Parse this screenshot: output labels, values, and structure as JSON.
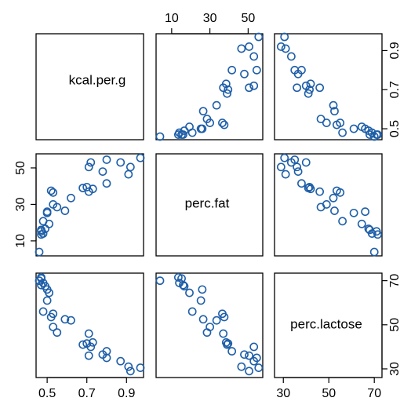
{
  "chart_data": {
    "type": "scatter",
    "variables": [
      "kcal.per.g",
      "perc.fat",
      "perc.lactose"
    ],
    "axes": {
      "kcal.per.g": {
        "range": [
          0.46,
          0.97
        ],
        "ticks": [
          0.5,
          0.7,
          0.9
        ],
        "tick_labels": [
          "0.5",
          "0.7",
          "0.9"
        ]
      },
      "perc.fat": {
        "range": [
          3.5,
          56
        ],
        "ticks": [
          10,
          30,
          50
        ],
        "tick_labels": [
          "10",
          "30",
          "50"
        ]
      },
      "perc.lactose": {
        "range": [
          27.5,
          72
        ],
        "ticks": [
          30,
          50,
          70
        ],
        "tick_labels": [
          "30",
          "50",
          "70"
        ]
      }
    },
    "point_color": "#1F5FA8",
    "grid": false,
    "observations": [
      {
        "kcal.per.g": 0.49,
        "perc.fat": 16.6,
        "perc.lactose": 67.5
      },
      {
        "kcal.per.g": 0.51,
        "perc.fat": 19.3,
        "perc.lactose": 64.5
      },
      {
        "kcal.per.g": 0.46,
        "perc.fat": 3.9,
        "perc.lactose": 70.0
      },
      {
        "kcal.per.g": 0.47,
        "perc.fat": 13.5,
        "perc.lactose": 71.5
      },
      {
        "kcal.per.g": 0.48,
        "perc.fat": 20.8,
        "perc.lactose": 56.0
      },
      {
        "kcal.per.g": 0.5,
        "perc.fat": 25.3,
        "perc.lactose": 61.0
      },
      {
        "kcal.per.g": 0.53,
        "perc.fat": 30.0,
        "perc.lactose": 49.0
      },
      {
        "kcal.per.g": 0.47,
        "perc.fat": 15.2,
        "perc.lactose": 71.0
      },
      {
        "kcal.per.g": 0.55,
        "perc.fat": 28.5,
        "perc.lactose": 46.5
      },
      {
        "kcal.per.g": 0.47,
        "perc.fat": 16.0,
        "perc.lactose": 68.0
      },
      {
        "kcal.per.g": 0.48,
        "perc.fat": 14.0,
        "perc.lactose": 69.0
      },
      {
        "kcal.per.g": 0.52,
        "perc.fat": 37.5,
        "perc.lactose": 53.5
      },
      {
        "kcal.per.g": 0.53,
        "perc.fat": 36.5,
        "perc.lactose": 55.0
      },
      {
        "kcal.per.g": 0.5,
        "perc.fat": 26.0,
        "perc.lactose": 66.0
      },
      {
        "kcal.per.g": 0.59,
        "perc.fat": 26.5,
        "perc.lactose": 52.5
      },
      {
        "kcal.per.g": 0.62,
        "perc.fat": 33.5,
        "perc.lactose": 52.0
      },
      {
        "kcal.per.g": 0.68,
        "perc.fat": 39.0,
        "perc.lactose": 41.0
      },
      {
        "kcal.per.g": 0.71,
        "perc.fat": 37.0,
        "perc.lactose": 46.0
      },
      {
        "kcal.per.g": 0.71,
        "perc.fat": 50.5,
        "perc.lactose": 36.0
      },
      {
        "kcal.per.g": 0.7,
        "perc.fat": 39.5,
        "perc.lactose": 41.5
      },
      {
        "kcal.per.g": 0.72,
        "perc.fat": 53.0,
        "perc.lactose": 40.0
      },
      {
        "kcal.per.g": 0.73,
        "perc.fat": 38.5,
        "perc.lactose": 42.0
      },
      {
        "kcal.per.g": 0.78,
        "perc.fat": 48.0,
        "perc.lactose": 36.5
      },
      {
        "kcal.per.g": 0.8,
        "perc.fat": 41.5,
        "perc.lactose": 38.0
      },
      {
        "kcal.per.g": 0.8,
        "perc.fat": 54.5,
        "perc.lactose": 35.0
      },
      {
        "kcal.per.g": 0.87,
        "perc.fat": 53.0,
        "perc.lactose": 33.5
      },
      {
        "kcal.per.g": 0.91,
        "perc.fat": 46.5,
        "perc.lactose": 31.0
      },
      {
        "kcal.per.g": 0.92,
        "perc.fat": 50.5,
        "perc.lactose": 29.0
      },
      {
        "kcal.per.g": 0.97,
        "perc.fat": 55.5,
        "perc.lactose": 30.5
      }
    ]
  }
}
